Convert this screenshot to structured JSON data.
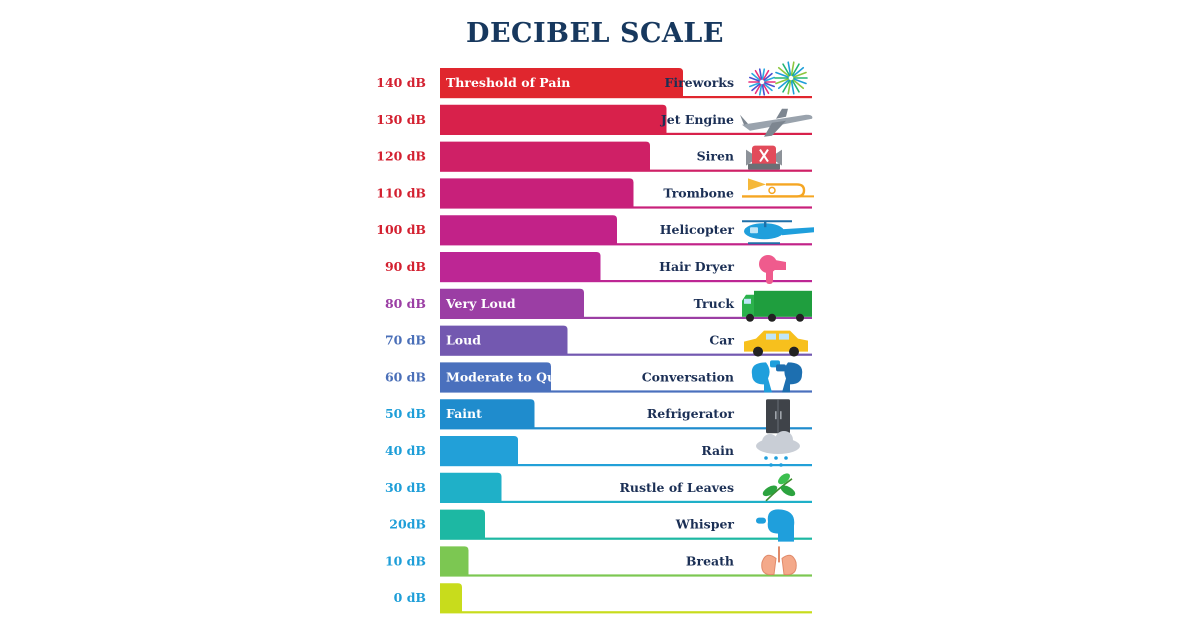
{
  "title": "DECIBEL SCALE",
  "chart_data": {
    "type": "bar",
    "title": "DECIBEL SCALE",
    "orientation": "horizontal",
    "xlim": [
      0,
      140
    ],
    "rows": [
      {
        "level": 140,
        "level_label": "140 dB",
        "bar_label": "Threshold of Pain",
        "source": "Fireworks",
        "icon": "fireworks-icon",
        "color": "#e0262e"
      },
      {
        "level": 130,
        "level_label": "130 dB",
        "bar_label": "",
        "source": "Jet Engine",
        "icon": "airplane-icon",
        "color": "#d8214b"
      },
      {
        "level": 120,
        "level_label": "120 dB",
        "bar_label": "",
        "source": "Siren",
        "icon": "siren-icon",
        "color": "#cf2066"
      },
      {
        "level": 110,
        "level_label": "110 dB",
        "bar_label": "",
        "source": "Trombone",
        "icon": "trombone-icon",
        "color": "#c8207a"
      },
      {
        "level": 100,
        "level_label": "100 dB",
        "bar_label": "",
        "source": "Helicopter",
        "icon": "helicopter-icon",
        "color": "#c22288"
      },
      {
        "level": 90,
        "level_label": "90 dB",
        "bar_label": "",
        "source": "Hair Dryer",
        "icon": "hair-dryer-icon",
        "color": "#bd2694"
      },
      {
        "level": 80,
        "level_label": "80 dB",
        "bar_label": "Very Loud",
        "source": "Truck",
        "icon": "truck-icon",
        "color": "#9b3ea4"
      },
      {
        "level": 70,
        "level_label": "70 dB",
        "bar_label": "Loud",
        "source": "Car",
        "icon": "car-icon",
        "color": "#7358b0"
      },
      {
        "level": 60,
        "level_label": "60 dB",
        "bar_label": "Moderate to Quiet",
        "source": "Conversation",
        "icon": "conversation-icon",
        "color": "#4a70bd"
      },
      {
        "level": 50,
        "level_label": "50 dB",
        "bar_label": "Faint",
        "source": "Refrigerator",
        "icon": "refrigerator-icon",
        "color": "#1f8ccd"
      },
      {
        "level": 40,
        "level_label": "40 dB",
        "bar_label": "",
        "source": "Rain",
        "icon": "rain-cloud-icon",
        "color": "#22a0d8"
      },
      {
        "level": 30,
        "level_label": "30 dB",
        "bar_label": "",
        "source": "Rustle of Leaves",
        "icon": "leaves-icon",
        "color": "#1fb0c8"
      },
      {
        "level": 20,
        "level_label": "20dB",
        "bar_label": "",
        "source": "Whisper",
        "icon": "whisper-icon",
        "color": "#1db8a3"
      },
      {
        "level": 10,
        "level_label": "10 dB",
        "bar_label": "",
        "source": "Breath",
        "icon": "lungs-icon",
        "color": "#7cc752"
      },
      {
        "level": 0,
        "level_label": "0 dB",
        "bar_label": "",
        "source": "",
        "icon": "",
        "color": "#c8dc1c"
      }
    ]
  }
}
